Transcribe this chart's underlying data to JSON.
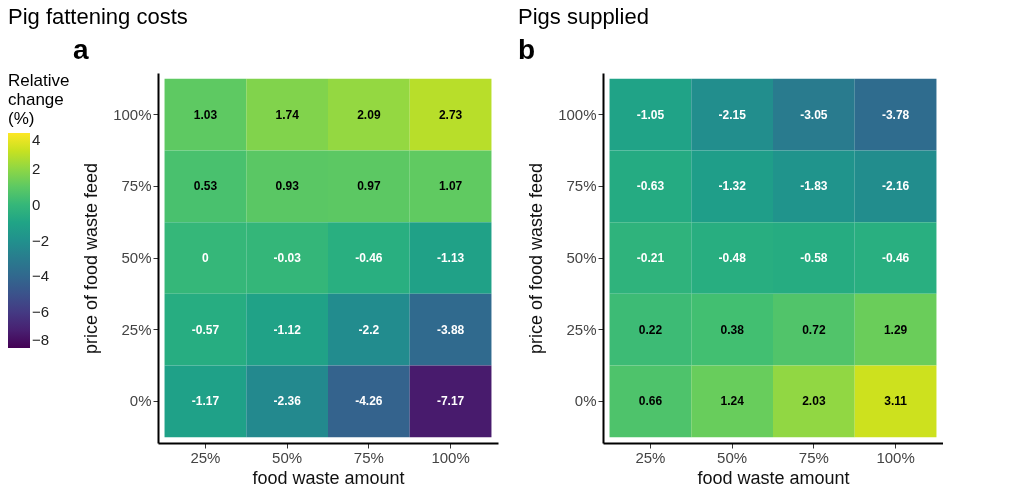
{
  "chart_data": [
    {
      "type": "heatmap",
      "title": "Pig fattening costs",
      "annotations": [
        "a"
      ],
      "xlabel": "food waste amount",
      "ylabel": "price of food waste feed",
      "legend_title": "Relative change (%)",
      "categories": [
        "25%",
        "50%",
        "75%",
        "100%"
      ],
      "y_categories": [
        "100%",
        "75%",
        "50%",
        "25%",
        "0%"
      ],
      "cells": [
        [
          1.03,
          1.74,
          2.09,
          2.73
        ],
        [
          0.53,
          0.93,
          0.97,
          1.07
        ],
        [
          0,
          -0.03,
          -0.46,
          -1.13
        ],
        [
          -0.57,
          -1.12,
          -2.2,
          -3.88
        ],
        [
          -1.17,
          -2.36,
          -4.26,
          -7.17
        ]
      ],
      "data_labels": true,
      "clim": [
        -8,
        4
      ],
      "cticks": [
        -8,
        -6,
        -4,
        -2,
        0,
        2,
        4
      ]
    },
    {
      "type": "heatmap",
      "title": "Pigs supplied",
      "annotations": [
        "b"
      ],
      "xlabel": "food waste amount",
      "ylabel": "price of food waste feed",
      "categories": [
        "25%",
        "50%",
        "75%",
        "100%"
      ],
      "y_categories": [
        "100%",
        "75%",
        "50%",
        "25%",
        "0%"
      ],
      "cells": [
        [
          -1.05,
          -2.15,
          -3.05,
          -3.78
        ],
        [
          -0.63,
          -1.32,
          -1.83,
          -2.16
        ],
        [
          -0.21,
          -0.48,
          -0.58,
          -0.46
        ],
        [
          0.22,
          0.38,
          0.72,
          1.29
        ],
        [
          0.66,
          1.24,
          2.03,
          3.11
        ]
      ],
      "data_labels": true
    }
  ]
}
